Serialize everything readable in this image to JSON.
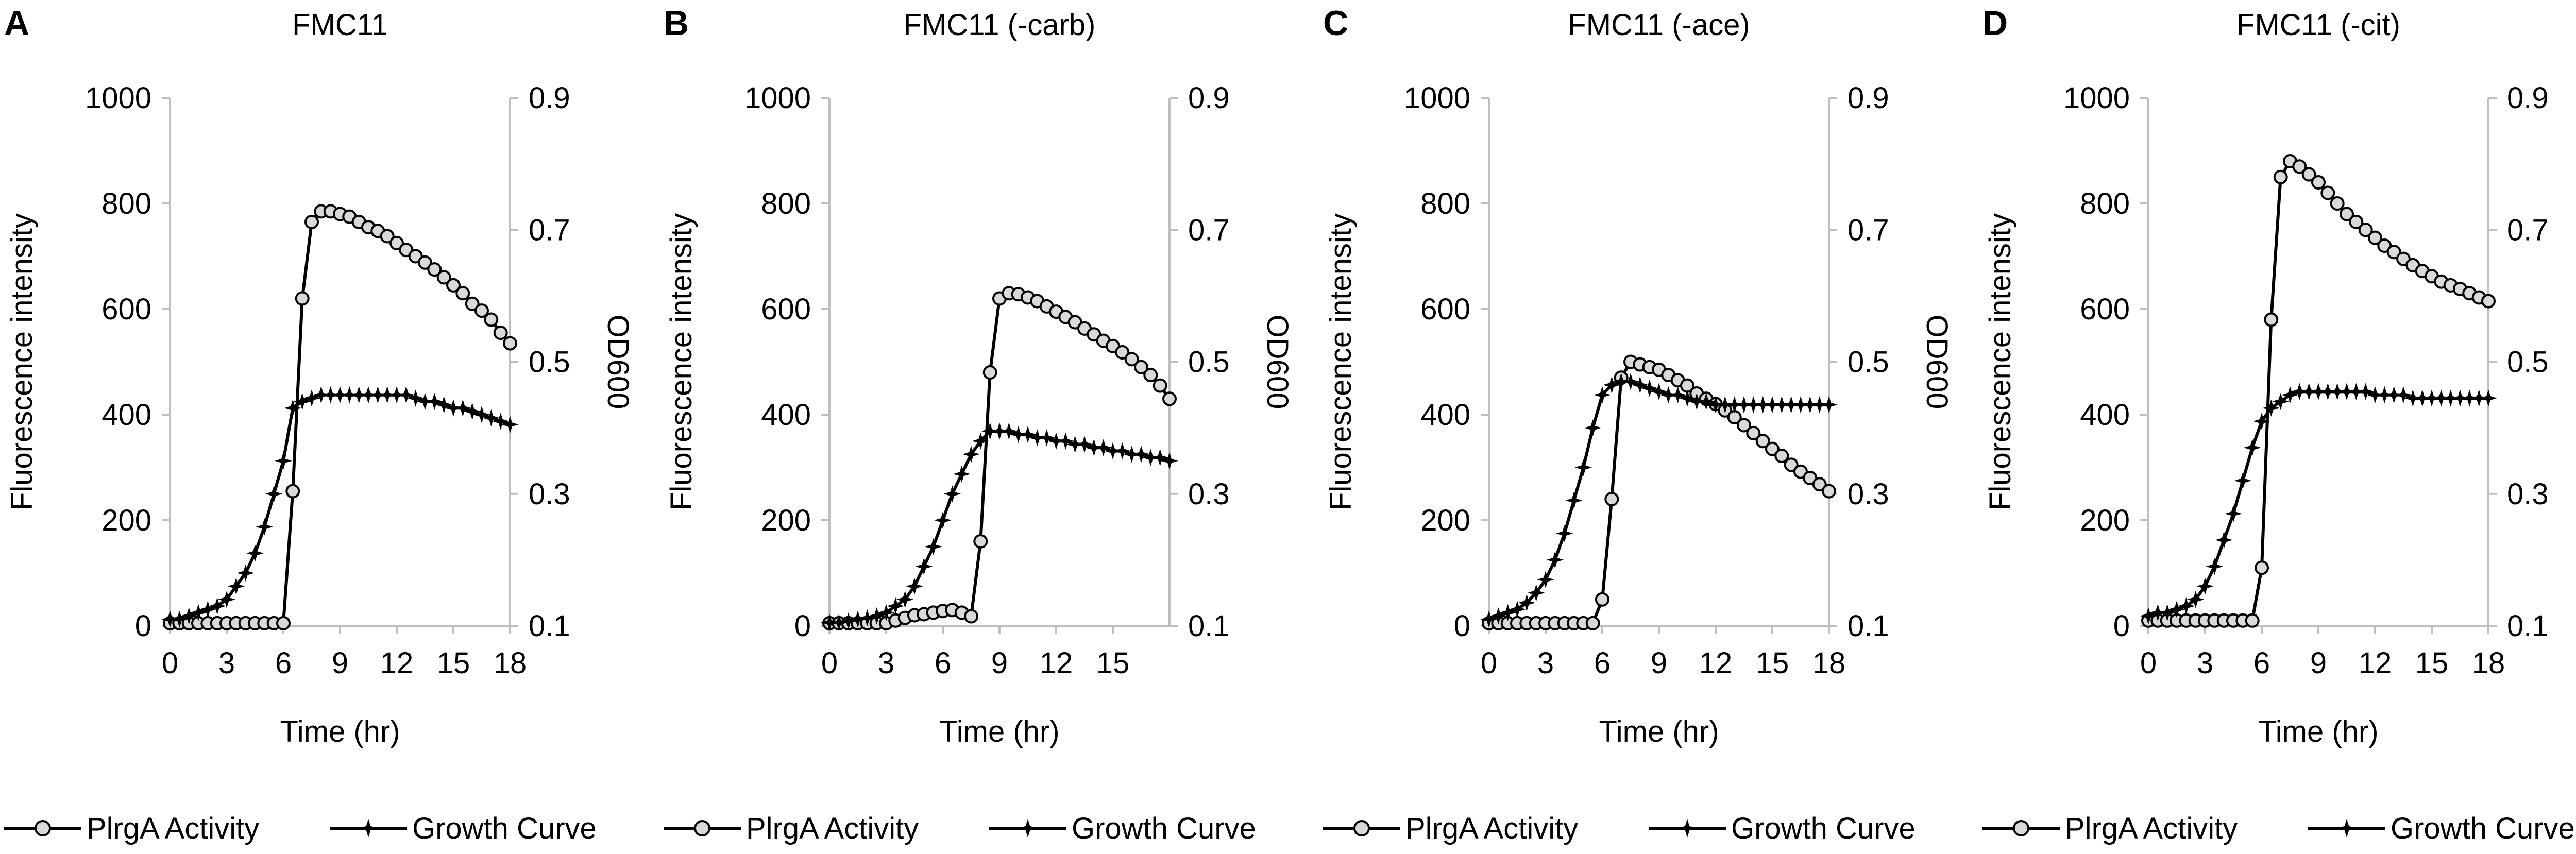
{
  "figure": {
    "legend": {
      "series1_label": "PlrgA Activity",
      "series2_label": "Growth Curve"
    }
  },
  "chart_data": [
    {
      "type": "line",
      "panel_label": "A",
      "title": "FMC11",
      "xlabel": "Time (hr)",
      "ylabel": "Fluorescence intensity",
      "y2label": "OD600",
      "xlim": [
        0,
        18
      ],
      "ylim": [
        0,
        1000
      ],
      "y2lim": [
        0.1,
        0.9
      ],
      "x_ticks": [
        0,
        3,
        6,
        9,
        12,
        15,
        18
      ],
      "y_ticks": [
        0,
        200,
        400,
        600,
        800,
        1000
      ],
      "y2_ticks": [
        0.1,
        0.3,
        0.5,
        0.7,
        0.9
      ],
      "y2_tick_labels": [
        "0.1",
        "0.3",
        "0.5",
        "0.7",
        "0.9"
      ],
      "grid": false,
      "series": [
        {
          "name": "PlrgA Activity",
          "axis": "left",
          "marker": "open-circle",
          "x": [
            0,
            0.5,
            1,
            1.5,
            2,
            2.5,
            3,
            3.5,
            4,
            4.5,
            5,
            5.5,
            6,
            6.5,
            7,
            7.5,
            8,
            8.5,
            9,
            9.5,
            10,
            10.5,
            11,
            11.5,
            12,
            12.5,
            13,
            13.5,
            14,
            14.5,
            15,
            15.5,
            16,
            16.5,
            17,
            17.5,
            18
          ],
          "values": [
            5,
            5,
            5,
            5,
            5,
            5,
            5,
            5,
            5,
            5,
            5,
            5,
            5,
            255,
            620,
            765,
            785,
            785,
            780,
            775,
            765,
            755,
            748,
            738,
            725,
            712,
            700,
            688,
            675,
            660,
            645,
            630,
            610,
            597,
            580,
            555,
            535
          ]
        },
        {
          "name": "Growth Curve",
          "axis": "right",
          "marker": "star",
          "x": [
            0,
            0.5,
            1,
            1.5,
            2,
            2.5,
            3,
            3.5,
            4,
            4.5,
            5,
            5.5,
            6,
            6.5,
            7,
            7.5,
            8,
            8.5,
            9,
            9.5,
            10,
            10.5,
            11,
            11.5,
            12,
            12.5,
            13,
            13.5,
            14,
            14.5,
            15,
            15.5,
            16,
            16.5,
            17,
            17.5,
            18
          ],
          "values": [
            0.11,
            0.11,
            0.115,
            0.12,
            0.125,
            0.13,
            0.14,
            0.16,
            0.18,
            0.21,
            0.25,
            0.3,
            0.35,
            0.43,
            0.44,
            0.445,
            0.45,
            0.45,
            0.45,
            0.45,
            0.45,
            0.45,
            0.45,
            0.45,
            0.45,
            0.45,
            0.445,
            0.44,
            0.44,
            0.435,
            0.43,
            0.43,
            0.425,
            0.42,
            0.415,
            0.41,
            0.405
          ]
        }
      ]
    },
    {
      "type": "line",
      "panel_label": "B",
      "title": "FMC11 (-carb)",
      "xlabel": "Time (hr)",
      "ylabel": "Fluorescence intensity",
      "y2label": "OD600",
      "xlim": [
        0,
        18
      ],
      "ylim": [
        0,
        1000
      ],
      "y2lim": [
        0.1,
        0.9
      ],
      "x_ticks": [
        0,
        3,
        6,
        9,
        12,
        15
      ],
      "y_ticks": [
        0,
        200,
        400,
        600,
        800,
        1000
      ],
      "y2_ticks": [
        0.1,
        0.3,
        0.5,
        0.7,
        0.9
      ],
      "y2_tick_labels": [
        "0.1",
        "0.3",
        "0.5",
        "0.7",
        "0.9"
      ],
      "grid": false,
      "series": [
        {
          "name": "PlrgA Activity",
          "axis": "left",
          "marker": "open-circle",
          "x": [
            0,
            0.5,
            1,
            1.5,
            2,
            2.5,
            3,
            3.5,
            4,
            4.5,
            5,
            5.5,
            6,
            6.5,
            7,
            7.5,
            8,
            8.5,
            9,
            9.5,
            10,
            10.5,
            11,
            11.5,
            12,
            12.5,
            13,
            13.5,
            14,
            14.5,
            15,
            15.5,
            16,
            16.5,
            17,
            17.5,
            18
          ],
          "values": [
            5,
            5,
            5,
            5,
            5,
            5,
            5,
            10,
            15,
            20,
            22,
            25,
            28,
            30,
            25,
            18,
            160,
            480,
            620,
            630,
            628,
            622,
            615,
            605,
            595,
            585,
            575,
            563,
            552,
            540,
            530,
            518,
            505,
            490,
            475,
            455,
            430
          ]
        },
        {
          "name": "Growth Curve",
          "axis": "right",
          "marker": "star",
          "x": [
            0,
            0.5,
            1,
            1.5,
            2,
            2.5,
            3,
            3.5,
            4,
            4.5,
            5,
            5.5,
            6,
            6.5,
            7,
            7.5,
            8,
            8.5,
            9,
            9.5,
            10,
            10.5,
            11,
            11.5,
            12,
            12.5,
            13,
            13.5,
            14,
            14.5,
            15,
            15.5,
            16,
            16.5,
            17,
            17.5,
            18
          ],
          "values": [
            0.105,
            0.105,
            0.107,
            0.11,
            0.112,
            0.115,
            0.12,
            0.13,
            0.14,
            0.16,
            0.19,
            0.22,
            0.26,
            0.3,
            0.33,
            0.36,
            0.38,
            0.395,
            0.395,
            0.395,
            0.39,
            0.39,
            0.385,
            0.385,
            0.38,
            0.38,
            0.375,
            0.375,
            0.37,
            0.37,
            0.365,
            0.365,
            0.36,
            0.36,
            0.355,
            0.355,
            0.35
          ]
        }
      ]
    },
    {
      "type": "line",
      "panel_label": "C",
      "title": "FMC11 (-ace)",
      "xlabel": "Time (hr)",
      "ylabel": "Fluorescence intensity",
      "y2label": "OD600",
      "xlim": [
        0,
        18
      ],
      "ylim": [
        0,
        1000
      ],
      "y2lim": [
        0.1,
        0.9
      ],
      "x_ticks": [
        0,
        3,
        6,
        9,
        12,
        15,
        18
      ],
      "y_ticks": [
        0,
        200,
        400,
        600,
        800,
        1000
      ],
      "y2_ticks": [
        0.1,
        0.3,
        0.5,
        0.7,
        0.9
      ],
      "y2_tick_labels": [
        "0.1",
        "0.3",
        "0.5",
        "0.7",
        "0.9"
      ],
      "grid": false,
      "series": [
        {
          "name": "PlrgA Activity",
          "axis": "left",
          "marker": "open-circle",
          "x": [
            0,
            0.5,
            1,
            1.5,
            2,
            2.5,
            3,
            3.5,
            4,
            4.5,
            5,
            5.5,
            6,
            6.5,
            7,
            7.5,
            8,
            8.5,
            9,
            9.5,
            10,
            10.5,
            11,
            11.5,
            12,
            12.5,
            13,
            13.5,
            14,
            14.5,
            15,
            15.5,
            16,
            16.5,
            17,
            17.5,
            18
          ],
          "values": [
            5,
            5,
            5,
            5,
            5,
            5,
            5,
            5,
            5,
            5,
            5,
            5,
            50,
            240,
            470,
            500,
            495,
            490,
            485,
            475,
            465,
            455,
            440,
            430,
            420,
            408,
            395,
            380,
            365,
            350,
            335,
            322,
            305,
            292,
            280,
            268,
            255
          ]
        },
        {
          "name": "Growth Curve",
          "axis": "right",
          "marker": "star",
          "x": [
            0,
            0.5,
            1,
            1.5,
            2,
            2.5,
            3,
            3.5,
            4,
            4.5,
            5,
            5.5,
            6,
            6.5,
            7,
            7.5,
            8,
            8.5,
            9,
            9.5,
            10,
            10.5,
            11,
            11.5,
            12,
            12.5,
            13,
            13.5,
            14,
            14.5,
            15,
            15.5,
            16,
            16.5,
            17,
            17.5,
            18
          ],
          "values": [
            0.11,
            0.115,
            0.12,
            0.125,
            0.135,
            0.15,
            0.17,
            0.2,
            0.24,
            0.29,
            0.34,
            0.4,
            0.45,
            0.465,
            0.47,
            0.47,
            0.465,
            0.46,
            0.455,
            0.45,
            0.45,
            0.445,
            0.44,
            0.44,
            0.435,
            0.435,
            0.435,
            0.435,
            0.435,
            0.435,
            0.435,
            0.435,
            0.435,
            0.435,
            0.435,
            0.435,
            0.435
          ]
        }
      ]
    },
    {
      "type": "line",
      "panel_label": "D",
      "title": "FMC11 (-cit)",
      "xlabel": "Time (hr)",
      "ylabel": "Fluorescence intensity",
      "y2label": "OD600",
      "xlim": [
        0,
        18
      ],
      "ylim": [
        0,
        1000
      ],
      "y2lim": [
        0.1,
        0.9
      ],
      "x_ticks": [
        0,
        3,
        6,
        9,
        12,
        15,
        18
      ],
      "y_ticks": [
        0,
        200,
        400,
        600,
        800,
        1000
      ],
      "y2_ticks": [
        0.1,
        0.3,
        0.5,
        0.7,
        0.9
      ],
      "y2_tick_labels": [
        "0.1",
        "0.3",
        "0.5",
        "0.7",
        "0.9"
      ],
      "grid": false,
      "series": [
        {
          "name": "PlrgA Activity",
          "axis": "left",
          "marker": "open-circle",
          "x": [
            0,
            0.5,
            1,
            1.5,
            2,
            2.5,
            3,
            3.5,
            4,
            4.5,
            5,
            5.5,
            6,
            6.5,
            7,
            7.5,
            8,
            8.5,
            9,
            9.5,
            10,
            10.5,
            11,
            11.5,
            12,
            12.5,
            13,
            13.5,
            14,
            14.5,
            15,
            15.5,
            16,
            16.5,
            17,
            17.5,
            18
          ],
          "values": [
            10,
            10,
            10,
            10,
            10,
            10,
            10,
            10,
            10,
            10,
            10,
            10,
            110,
            580,
            850,
            880,
            870,
            855,
            840,
            820,
            800,
            780,
            765,
            750,
            735,
            720,
            708,
            695,
            683,
            672,
            662,
            652,
            645,
            638,
            630,
            622,
            615
          ]
        },
        {
          "name": "Growth Curve",
          "axis": "right",
          "marker": "star",
          "x": [
            0,
            0.5,
            1,
            1.5,
            2,
            2.5,
            3,
            3.5,
            4,
            4.5,
            5,
            5.5,
            6,
            6.5,
            7,
            7.5,
            8,
            8.5,
            9,
            9.5,
            10,
            10.5,
            11,
            11.5,
            12,
            12.5,
            13,
            13.5,
            14,
            14.5,
            15,
            15.5,
            16,
            16.5,
            17,
            17.5,
            18
          ],
          "values": [
            0.115,
            0.12,
            0.12,
            0.125,
            0.13,
            0.14,
            0.16,
            0.19,
            0.23,
            0.27,
            0.32,
            0.37,
            0.41,
            0.43,
            0.44,
            0.45,
            0.455,
            0.455,
            0.455,
            0.455,
            0.455,
            0.455,
            0.455,
            0.455,
            0.45,
            0.45,
            0.45,
            0.45,
            0.445,
            0.445,
            0.445,
            0.445,
            0.445,
            0.445,
            0.445,
            0.445,
            0.445
          ]
        }
      ]
    }
  ]
}
